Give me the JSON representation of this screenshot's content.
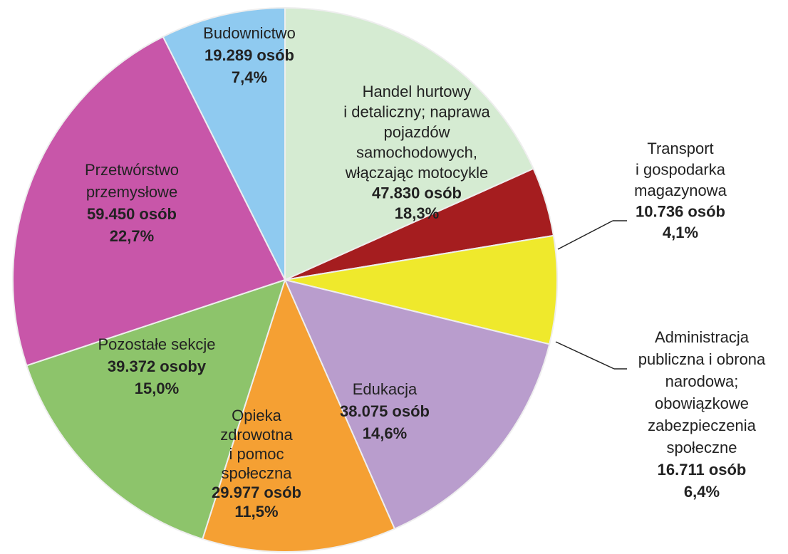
{
  "chart_data": {
    "type": "pie",
    "categories": [
      "Budownictwo",
      "Handel hurtowy\ni detaliczny; naprawa\npojazdów\nsamochodowych,\nwłączając motocykle",
      "Transport\ni gospodarka\nmagazynowa",
      "Administracja\npubliczna i obrona\nnarodowa;\nobowiązkowe\nzabezpieczenia\nspołeczne",
      "Edukacja",
      "Opieka\nzdrowotna\ni pomoc\nspołeczna",
      "Pozostałe sekcje",
      "Przetwórstwo\nprzemysłowe"
    ],
    "counts": [
      "19.289 osób",
      "47.830 osób",
      "10.736 osób",
      "16.711 osób",
      "38.075 osób",
      "29.977 osób",
      "39.372 osoby",
      "59.450 osób"
    ],
    "values": [
      7.4,
      18.3,
      4.1,
      6.4,
      14.6,
      11.5,
      15.0,
      22.7
    ],
    "value_labels": [
      "7,4%",
      "18,3%",
      "4,1%",
      "6,4%",
      "14,6%",
      "11,5%",
      "15,0%",
      "22,7%"
    ],
    "colors": [
      "#8fcaf0",
      "#d5ebd2",
      "#a51d1f",
      "#efe92c",
      "#b99dcd",
      "#f5a033",
      "#8dc46b",
      "#c856a9"
    ]
  }
}
